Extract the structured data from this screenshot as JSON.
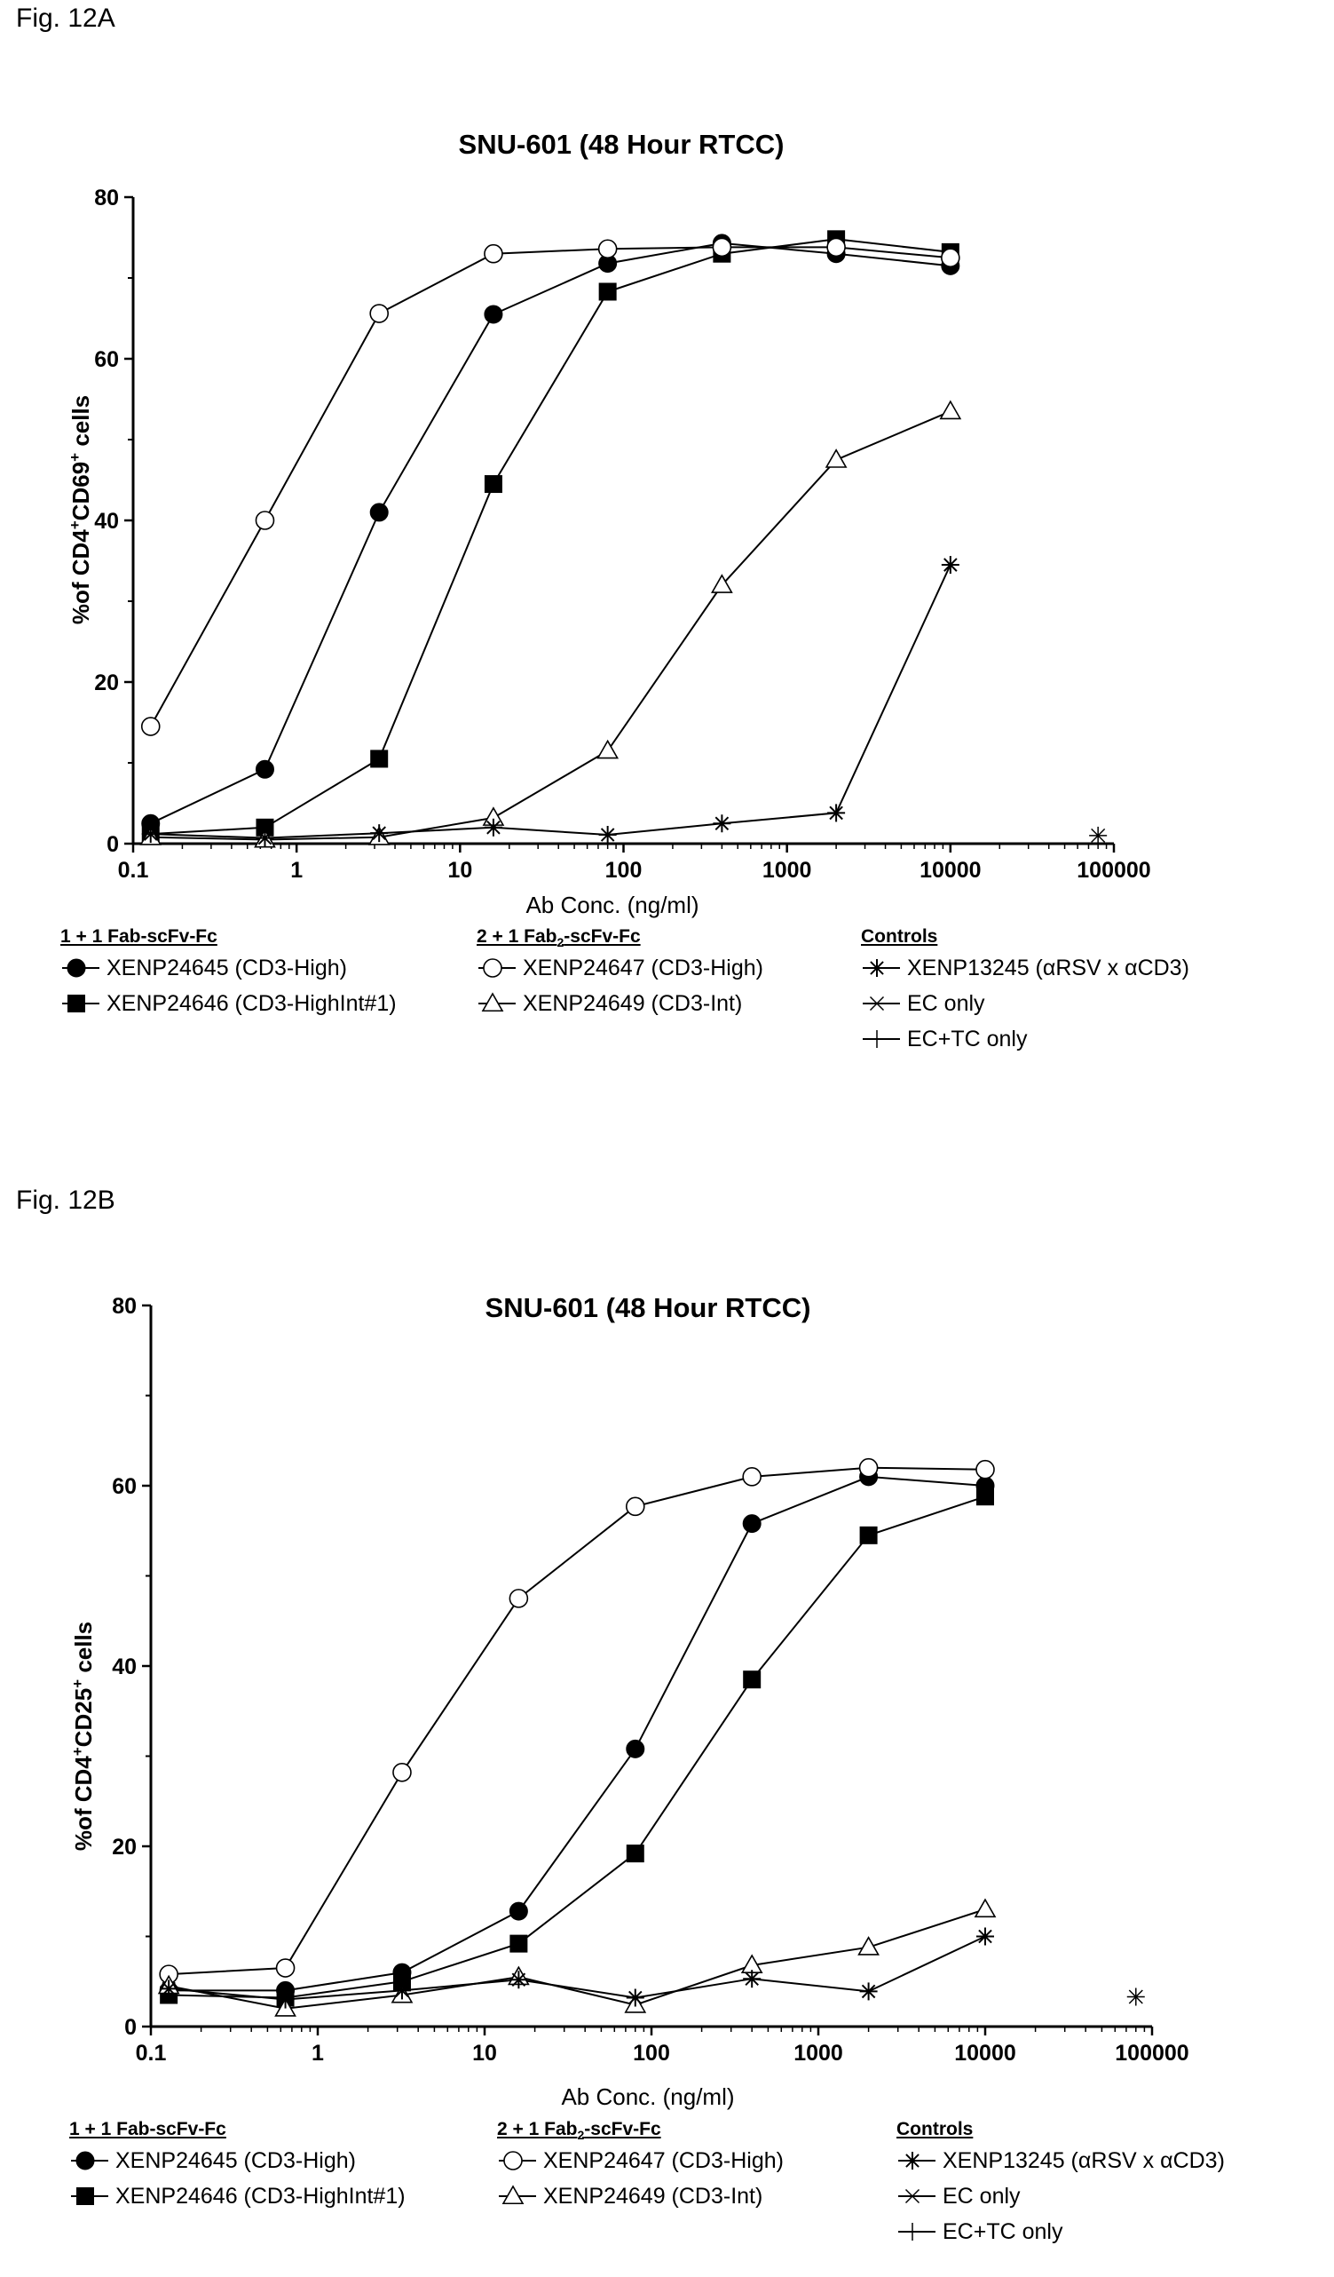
{
  "figures": [
    {
      "label": "Fig. 12A",
      "title": "SNU-601 (48 Hour RTCC)",
      "xlabel": "Ab Conc. (ng/ml)",
      "ylabel_parts": [
        "%of CD4",
        "+",
        "CD69",
        "+",
        " cells"
      ],
      "legend_groups": [
        {
          "header": "1 + 1 Fab-scFv-Fc",
          "items": [
            "XENP24645 (CD3-High)",
            "XENP24646 (CD3-HighInt#1)"
          ]
        },
        {
          "header": "2 + 1 Fab2-scFv-Fc",
          "items": [
            "XENP24647 (CD3-High)",
            "XENP24649 (CD3-Int)"
          ]
        },
        {
          "header": "Controls",
          "items": [
            "XENP13245 (αRSV x αCD3)",
            "EC only",
            "EC+TC only"
          ]
        }
      ]
    },
    {
      "label": "Fig. 12B",
      "title": "SNU-601 (48 Hour RTCC)",
      "xlabel": "Ab Conc. (ng/ml)",
      "ylabel_parts": [
        "%of CD4",
        "+",
        "CD25",
        "+",
        " cells"
      ],
      "legend_groups": [
        {
          "header": "1 + 1 Fab-scFv-Fc",
          "items": [
            "XENP24645 (CD3-High)",
            "XENP24646 (CD3-HighInt#1)"
          ]
        },
        {
          "header": "2 + 1 Fab2-scFv-Fc",
          "items": [
            "XENP24647 (CD3-High)",
            "XENP24649 (CD3-Int)"
          ]
        },
        {
          "header": "Controls",
          "items": [
            "XENP13245 (αRSV x αCD3)",
            "EC only",
            "EC+TC only"
          ]
        }
      ]
    }
  ],
  "chart_data": [
    {
      "type": "line",
      "title": "SNU-601 (48 Hour RTCC)",
      "xlabel": "Ab Conc. (ng/ml)",
      "ylabel": "%of CD4+CD69+ cells",
      "xscale": "log",
      "xlim": [
        0.1,
        100000
      ],
      "ylim": [
        0,
        80
      ],
      "xticks": [
        "0.1",
        "1",
        "10",
        "100",
        "1000",
        "10000",
        "100000"
      ],
      "yticks": [
        "0",
        "20",
        "40",
        "60",
        "80"
      ],
      "grid": false,
      "series": [
        {
          "name": "XENP24645 (CD3-High)",
          "marker": "filled-circle",
          "x": [
            0.128,
            0.64,
            3.2,
            16,
            80,
            400,
            2000,
            10000
          ],
          "y": [
            2.5,
            9.2,
            41,
            65.5,
            71.8,
            74.3,
            73,
            71.5
          ]
        },
        {
          "name": "XENP24646 (CD3-HighInt#1)",
          "marker": "filled-square",
          "x": [
            0.128,
            0.64,
            3.2,
            16,
            80,
            400,
            2000,
            10000
          ],
          "y": [
            1.2,
            2,
            10.5,
            44.5,
            68.3,
            73,
            74.8,
            73.2
          ]
        },
        {
          "name": "XENP24647 (CD3-High)",
          "marker": "open-circle",
          "x": [
            0.128,
            0.64,
            3.2,
            16,
            80,
            400,
            2000,
            10000
          ],
          "y": [
            14.5,
            40,
            65.6,
            73,
            73.6,
            73.8,
            73.8,
            72.5
          ]
        },
        {
          "name": "XENP24649 (CD3-Int)",
          "marker": "open-triangle",
          "x": [
            0.128,
            0.64,
            3.2,
            16,
            80,
            400,
            2000,
            10000
          ],
          "y": [
            0.8,
            0.5,
            0.8,
            3.2,
            11.5,
            32,
            47.5,
            53.5
          ]
        },
        {
          "name": "XENP13245 (αRSV x αCD3)",
          "marker": "asterisk",
          "x": [
            0.128,
            0.64,
            3.2,
            16,
            80,
            400,
            2000,
            10000
          ],
          "y": [
            1.2,
            0.7,
            1.3,
            2,
            1.1,
            2.5,
            3.8,
            34.5
          ]
        },
        {
          "name": "EC only",
          "marker": "x",
          "x": [
            80000
          ],
          "y": [
            1
          ]
        },
        {
          "name": "EC+TC only",
          "marker": "plus",
          "x": [
            80000
          ],
          "y": [
            1
          ]
        }
      ]
    },
    {
      "type": "line",
      "title": "SNU-601 (48 Hour RTCC)",
      "xlabel": "Ab Conc. (ng/ml)",
      "ylabel": "%of CD4+CD25+ cells",
      "xscale": "log",
      "xlim": [
        0.1,
        100000
      ],
      "ylim": [
        0,
        80
      ],
      "xticks": [
        "0.1",
        "1",
        "10",
        "100",
        "1000",
        "10000",
        "100000"
      ],
      "yticks": [
        "0",
        "20",
        "40",
        "60",
        "80"
      ],
      "grid": false,
      "series": [
        {
          "name": "XENP24645 (CD3-High)",
          "marker": "filled-circle",
          "x": [
            0.128,
            0.64,
            3.2,
            16,
            80,
            400,
            2000,
            10000
          ],
          "y": [
            4,
            4,
            6,
            12.8,
            30.8,
            55.8,
            61,
            60
          ]
        },
        {
          "name": "XENP24646 (CD3-HighInt#1)",
          "marker": "filled-square",
          "x": [
            0.128,
            0.64,
            3.2,
            16,
            80,
            400,
            2000,
            10000
          ],
          "y": [
            3.5,
            3.2,
            5,
            9.2,
            19.2,
            38.5,
            54.5,
            58.8
          ]
        },
        {
          "name": "XENP24647 (CD3-High)",
          "marker": "open-circle",
          "x": [
            0.128,
            0.64,
            3.2,
            16,
            80,
            400,
            2000,
            10000
          ],
          "y": [
            5.8,
            6.5,
            28.2,
            47.5,
            57.7,
            61,
            62,
            61.8
          ]
        },
        {
          "name": "XENP24649 (CD3-Int)",
          "marker": "open-triangle",
          "x": [
            0.128,
            0.64,
            3.2,
            16,
            80,
            400,
            2000,
            10000
          ],
          "y": [
            4.5,
            2,
            3.5,
            5.5,
            2.4,
            6.8,
            8.8,
            13
          ]
        },
        {
          "name": "XENP13245 (αRSV x αCD3)",
          "marker": "asterisk",
          "x": [
            0.128,
            0.64,
            3.2,
            16,
            80,
            400,
            2000,
            10000
          ],
          "y": [
            4.2,
            3,
            4,
            5.2,
            3.2,
            5.3,
            3.9,
            10
          ]
        },
        {
          "name": "EC only",
          "marker": "x",
          "x": [
            80000
          ],
          "y": [
            3.3
          ]
        },
        {
          "name": "EC+TC only",
          "marker": "plus",
          "x": [
            80000
          ],
          "y": [
            3.3
          ]
        }
      ]
    }
  ]
}
